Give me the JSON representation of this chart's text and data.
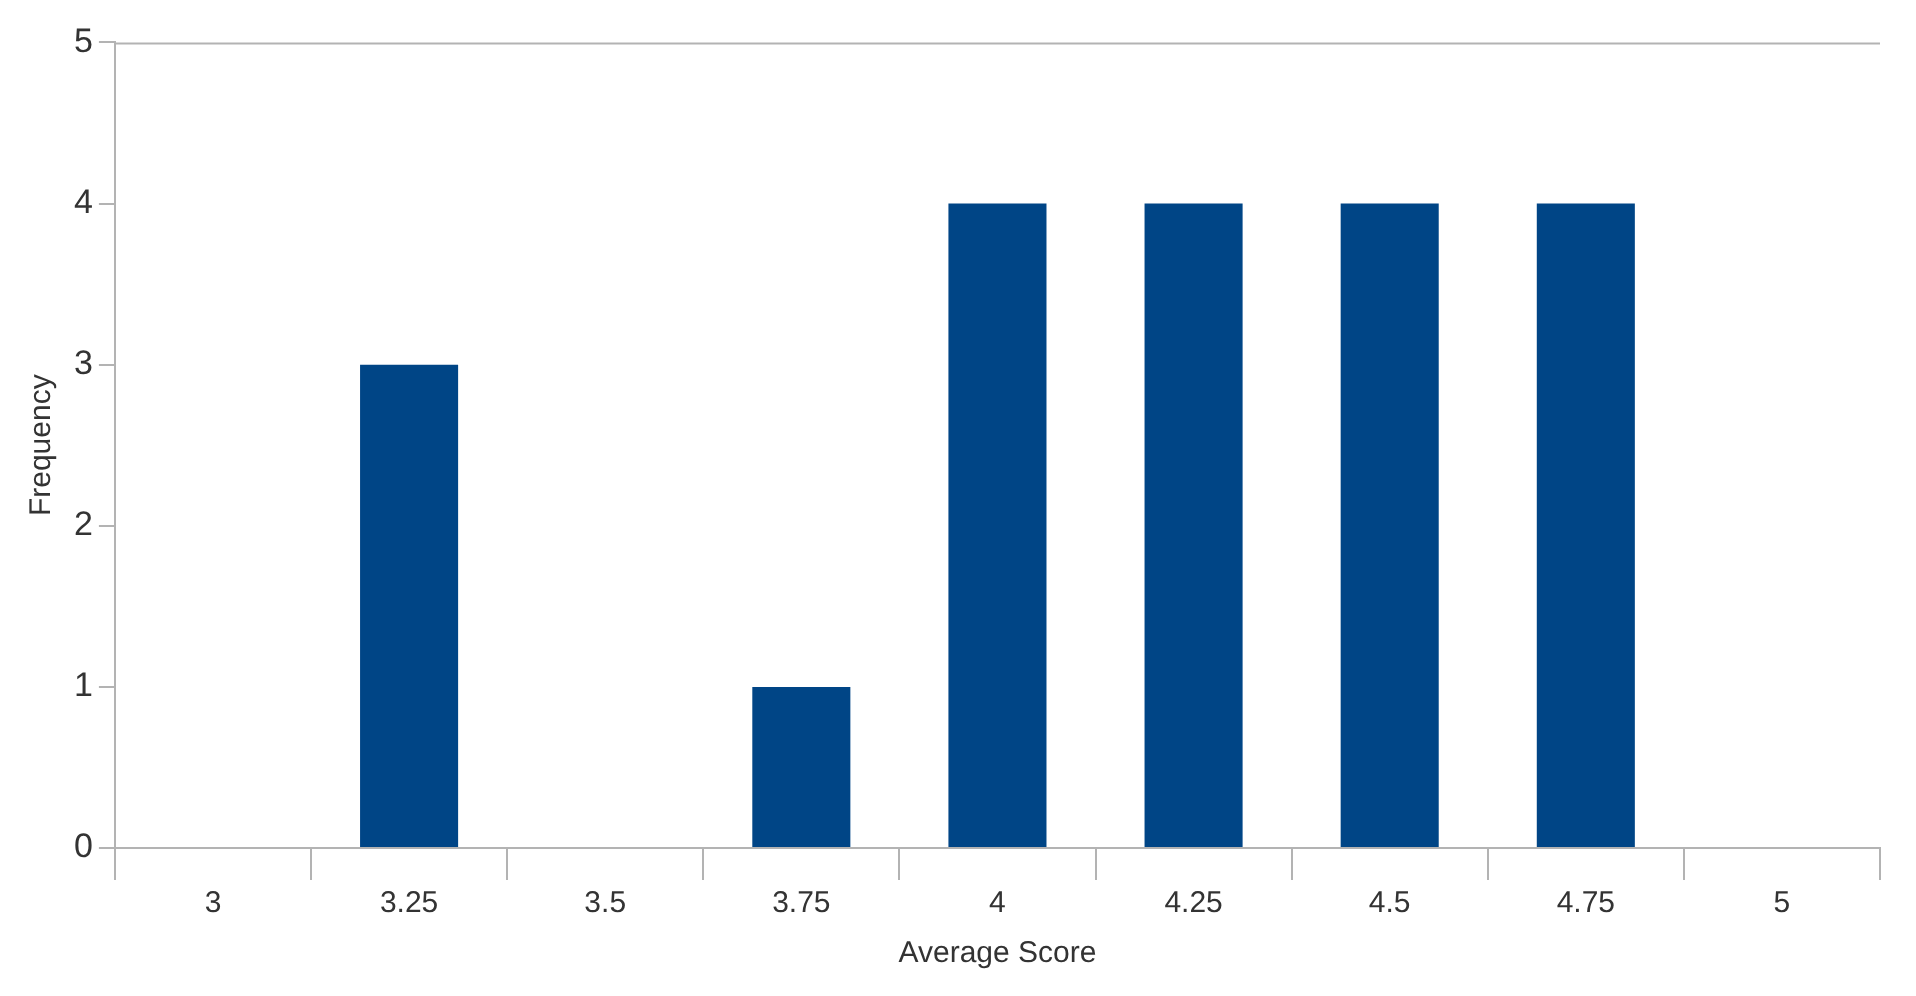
{
  "chart_data": {
    "type": "bar",
    "xlabel": "Average Score",
    "ylabel": "Frequency",
    "categories": [
      "3",
      "3.25",
      "3.5",
      "3.75",
      "4",
      "4.25",
      "4.5",
      "4.75",
      "5"
    ],
    "values": [
      0,
      3,
      0,
      1,
      4,
      4,
      4,
      4,
      0
    ],
    "color": "#004586",
    "ylim": [
      0,
      5
    ],
    "yticks": [
      0,
      1,
      2,
      3,
      4,
      5
    ],
    "grid": false,
    "legend": false
  }
}
